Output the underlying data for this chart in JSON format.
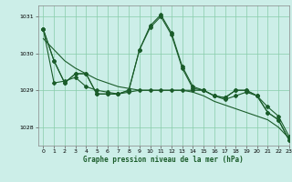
{
  "title": "Graphe pression niveau de la mer (hPa)",
  "background_color": "#cceee8",
  "grid_color": "#88ccaa",
  "line_color": "#1a5c2a",
  "xlim": [
    -0.5,
    23
  ],
  "ylim": [
    1027.5,
    1031.3
  ],
  "yticks": [
    1028,
    1029,
    1030,
    1031
  ],
  "xticks": [
    0,
    1,
    2,
    3,
    4,
    5,
    6,
    7,
    8,
    9,
    10,
    11,
    12,
    13,
    14,
    15,
    16,
    17,
    18,
    19,
    20,
    21,
    22,
    23
  ],
  "series1": {
    "x": [
      0,
      1,
      2,
      3,
      4,
      5,
      6,
      7,
      8,
      9,
      10,
      11,
      12,
      13,
      14,
      15,
      16,
      17,
      18,
      19,
      20,
      21,
      22,
      23
    ],
    "y": [
      1030.65,
      1029.8,
      1029.2,
      1029.45,
      1029.45,
      1028.9,
      1028.9,
      1028.9,
      1029.0,
      1030.1,
      1030.75,
      1031.05,
      1030.55,
      1029.65,
      1029.1,
      1029.0,
      1028.85,
      1028.8,
      1029.0,
      1029.0,
      1028.85,
      1028.4,
      1028.2,
      1027.65
    ]
  },
  "series2": {
    "x": [
      0,
      1,
      2,
      3,
      4,
      5,
      6,
      7,
      8,
      9,
      10,
      11,
      12,
      13,
      14,
      15,
      16,
      17,
      18,
      19,
      20,
      21,
      22,
      23
    ],
    "y": [
      1030.65,
      1029.8,
      1029.2,
      1029.45,
      1029.45,
      1028.9,
      1028.9,
      1028.9,
      1029.0,
      1030.1,
      1030.7,
      1031.0,
      1030.5,
      1029.6,
      1029.05,
      1029.0,
      1028.85,
      1028.8,
      1029.0,
      1029.0,
      1028.85,
      1028.4,
      1028.2,
      1027.65
    ]
  },
  "series3": {
    "x": [
      0,
      1,
      2,
      3,
      4,
      5,
      6,
      7,
      8,
      9,
      10,
      11,
      12,
      13,
      14,
      15,
      16,
      17,
      18,
      19,
      20,
      21,
      22,
      23
    ],
    "y": [
      1030.65,
      1029.2,
      1029.25,
      1029.35,
      1029.1,
      1029.0,
      1028.95,
      1028.9,
      1028.95,
      1029.0,
      1029.0,
      1029.0,
      1029.0,
      1029.0,
      1029.0,
      1029.0,
      1028.85,
      1028.75,
      1028.85,
      1028.95,
      1028.85,
      1028.55,
      1028.3,
      1027.75
    ]
  },
  "series4": {
    "x": [
      0,
      1,
      2,
      3,
      4,
      5,
      6,
      7,
      8,
      9,
      10,
      11,
      12,
      13,
      14,
      15,
      16,
      17,
      18,
      19,
      20,
      21,
      22,
      23
    ],
    "y": [
      1030.4,
      1030.1,
      1029.8,
      1029.6,
      1029.45,
      1029.3,
      1029.2,
      1029.1,
      1029.05,
      1029.0,
      1029.0,
      1029.0,
      1029.0,
      1029.0,
      1028.95,
      1028.85,
      1028.7,
      1028.6,
      1028.5,
      1028.4,
      1028.3,
      1028.2,
      1028.0,
      1027.7
    ]
  }
}
